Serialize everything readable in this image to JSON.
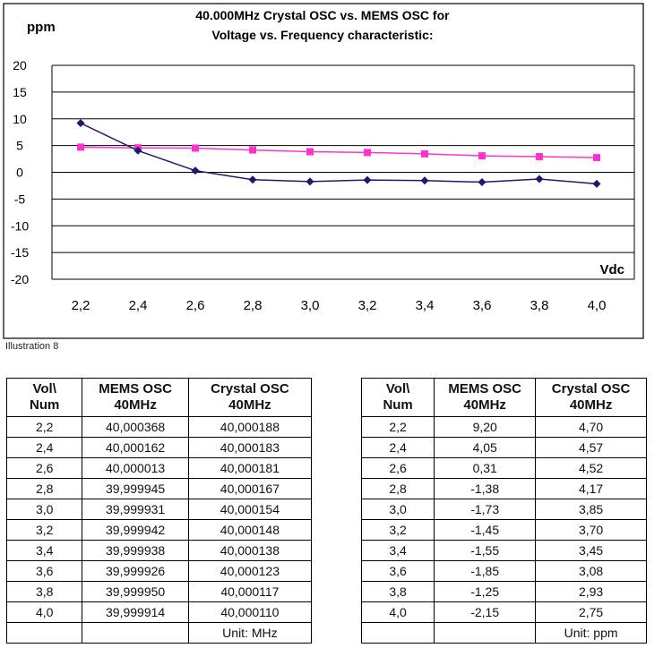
{
  "chart_data": {
    "type": "line",
    "title": "40.000MHz Crystal OSC vs. MEMS OSC for",
    "subtitle": "Voltage vs. Frequency characteristic:",
    "xlabel": "Vdc",
    "ylabel": "ppm",
    "categories": [
      "2,2",
      "2,4",
      "2,6",
      "2,8",
      "3,0",
      "3,2",
      "3,4",
      "3,6",
      "3,8",
      "4,0"
    ],
    "yticks": [
      "20",
      "15",
      "10",
      "5",
      "0",
      "-5",
      "-10",
      "-15",
      "-20"
    ],
    "ylim": [
      -20,
      20
    ],
    "grid": true,
    "series": [
      {
        "values": [
          9.2,
          4.05,
          0.31,
          -1.38,
          -1.73,
          -1.45,
          -1.55,
          -1.85,
          -1.25,
          -2.15
        ],
        "color": "#1a1a6e",
        "marker": "diamond"
      },
      {
        "values": [
          4.7,
          4.57,
          4.52,
          4.17,
          3.85,
          3.7,
          3.45,
          3.08,
          2.93,
          2.75
        ],
        "color": "#ff33cc",
        "marker": "square"
      }
    ]
  },
  "caption": "Illustration 8",
  "table_mhz": {
    "headers": [
      [
        "Vol\\",
        "Num"
      ],
      [
        "MEMS OSC",
        "40MHz"
      ],
      [
        "Crystal OSC",
        "40MHz"
      ]
    ],
    "rows": [
      [
        "2,2",
        "40,000368",
        "40,000188"
      ],
      [
        "2,4",
        "40,000162",
        "40,000183"
      ],
      [
        "2,6",
        "40,000013",
        "40,000181"
      ],
      [
        "2,8",
        "39,999945",
        "40,000167"
      ],
      [
        "3,0",
        "39,999931",
        "40,000154"
      ],
      [
        "3,2",
        "39,999942",
        "40,000148"
      ],
      [
        "3,4",
        "39,999938",
        "40,000138"
      ],
      [
        "3,6",
        "39,999926",
        "40,000123"
      ],
      [
        "3,8",
        "39,999950",
        "40,000117"
      ],
      [
        "4,0",
        "39,999914",
        "40,000110"
      ]
    ],
    "unit": "Unit: MHz"
  },
  "table_ppm": {
    "headers": [
      [
        "Vol\\",
        "Num"
      ],
      [
        "MEMS OSC",
        "40MHz"
      ],
      [
        "Crystal OSC",
        "40MHz"
      ]
    ],
    "rows": [
      [
        "2,2",
        "9,20",
        "4,70"
      ],
      [
        "2,4",
        "4,05",
        "4,57"
      ],
      [
        "2,6",
        "0,31",
        "4,52"
      ],
      [
        "2,8",
        "-1,38",
        "4,17"
      ],
      [
        "3,0",
        "-1,73",
        "3,85"
      ],
      [
        "3,2",
        "-1,45",
        "3,70"
      ],
      [
        "3,4",
        "-1,55",
        "3,45"
      ],
      [
        "3,6",
        "-1,85",
        "3,08"
      ],
      [
        "3,8",
        "-1,25",
        "2,93"
      ],
      [
        "4,0",
        "-2,15",
        "2,75"
      ]
    ],
    "unit": "Unit: ppm"
  }
}
